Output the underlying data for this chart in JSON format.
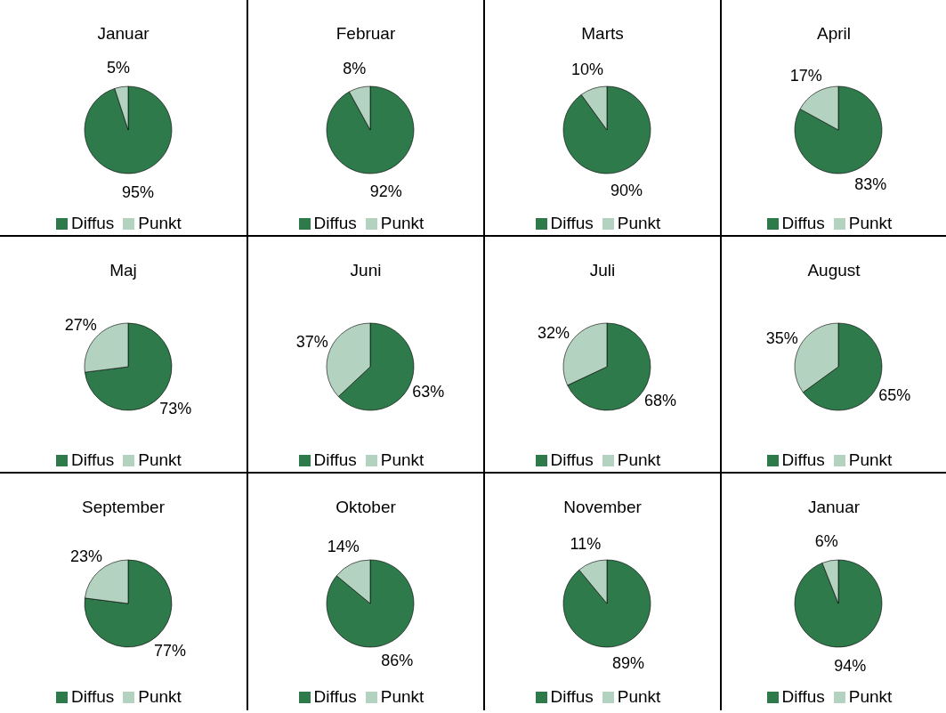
{
  "chart_data": [
    {
      "type": "pie",
      "title": "Januar",
      "categories": [
        "Diffus",
        "Punkt"
      ],
      "values": [
        95,
        5
      ],
      "value_labels": [
        "95%",
        "5%"
      ],
      "colors": [
        "#2e7a4a",
        "#b4d2c0"
      ],
      "legend": "bottom"
    },
    {
      "type": "pie",
      "title": "Februar",
      "categories": [
        "Diffus",
        "Punkt"
      ],
      "values": [
        92,
        8
      ],
      "value_labels": [
        "92%",
        "8%"
      ],
      "colors": [
        "#2e7a4a",
        "#b4d2c0"
      ],
      "legend": "bottom"
    },
    {
      "type": "pie",
      "title": "Marts",
      "categories": [
        "Diffus",
        "Punkt"
      ],
      "values": [
        90,
        10
      ],
      "value_labels": [
        "90%",
        "10%"
      ],
      "colors": [
        "#2e7a4a",
        "#b4d2c0"
      ],
      "legend": "bottom"
    },
    {
      "type": "pie",
      "title": "April",
      "categories": [
        "Diffus",
        "Punkt"
      ],
      "values": [
        83,
        17
      ],
      "value_labels": [
        "83%",
        "17%"
      ],
      "colors": [
        "#2e7a4a",
        "#b4d2c0"
      ],
      "legend": "bottom"
    },
    {
      "type": "pie",
      "title": "Maj",
      "categories": [
        "Diffus",
        "Punkt"
      ],
      "values": [
        73,
        27
      ],
      "value_labels": [
        "73%",
        "27%"
      ],
      "colors": [
        "#2e7a4a",
        "#b4d2c0"
      ],
      "legend": "bottom"
    },
    {
      "type": "pie",
      "title": "Juni",
      "categories": [
        "Diffus",
        "Punkt"
      ],
      "values": [
        63,
        37
      ],
      "value_labels": [
        "63%",
        "37%"
      ],
      "colors": [
        "#2e7a4a",
        "#b4d2c0"
      ],
      "legend": "bottom"
    },
    {
      "type": "pie",
      "title": "Juli",
      "categories": [
        "Diffus",
        "Punkt"
      ],
      "values": [
        68,
        32
      ],
      "value_labels": [
        "68%",
        "32%"
      ],
      "colors": [
        "#2e7a4a",
        "#b4d2c0"
      ],
      "legend": "bottom"
    },
    {
      "type": "pie",
      "title": "August",
      "categories": [
        "Diffus",
        "Punkt"
      ],
      "values": [
        65,
        35
      ],
      "value_labels": [
        "65%",
        "35%"
      ],
      "colors": [
        "#2e7a4a",
        "#b4d2c0"
      ],
      "legend": "bottom"
    },
    {
      "type": "pie",
      "title": "September",
      "categories": [
        "Diffus",
        "Punkt"
      ],
      "values": [
        77,
        23
      ],
      "value_labels": [
        "77%",
        "23%"
      ],
      "colors": [
        "#2e7a4a",
        "#b4d2c0"
      ],
      "legend": "bottom"
    },
    {
      "type": "pie",
      "title": "Oktober",
      "categories": [
        "Diffus",
        "Punkt"
      ],
      "values": [
        86,
        14
      ],
      "value_labels": [
        "86%",
        "14%"
      ],
      "colors": [
        "#2e7a4a",
        "#b4d2c0"
      ],
      "legend": "bottom"
    },
    {
      "type": "pie",
      "title": "November",
      "categories": [
        "Diffus",
        "Punkt"
      ],
      "values": [
        89,
        11
      ],
      "value_labels": [
        "89%",
        "11%"
      ],
      "colors": [
        "#2e7a4a",
        "#b4d2c0"
      ],
      "legend": "bottom"
    },
    {
      "type": "pie",
      "title": "Januar",
      "categories": [
        "Diffus",
        "Punkt"
      ],
      "values": [
        94,
        6
      ],
      "value_labels": [
        "94%",
        "6%"
      ],
      "colors": [
        "#2e7a4a",
        "#b4d2c0"
      ],
      "legend": "bottom"
    }
  ]
}
